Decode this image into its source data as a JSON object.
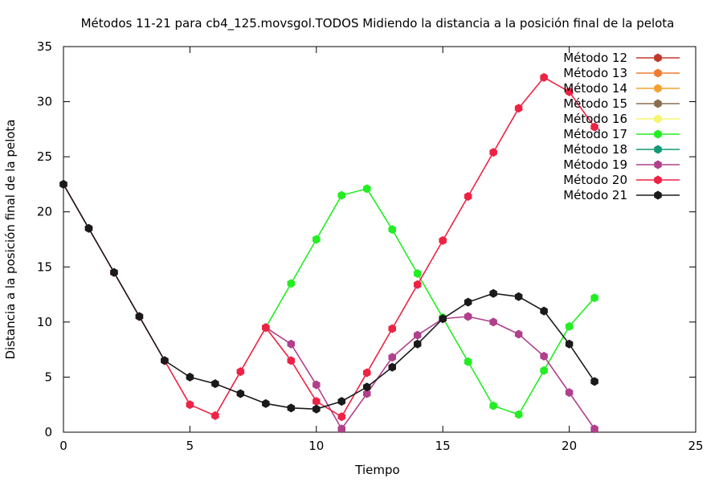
{
  "chart_data": {
    "type": "line",
    "title": "Métodos 11-21 para cb4_125.movsgol.TODOS Midiendo la distancia a la posición final de la pelota",
    "xlabel": "Tiempo",
    "ylabel": "Distancia a la posición final de la pelota",
    "xlim": [
      0,
      25
    ],
    "ylim": [
      0,
      35
    ],
    "xticks": [
      "0",
      "5",
      "10",
      "15",
      "20",
      "25"
    ],
    "yticks": [
      "0",
      "5",
      "10",
      "15",
      "20",
      "25",
      "30",
      "35"
    ],
    "grid": false,
    "legend_position": "top-right",
    "series": [
      {
        "name": "Método 12",
        "color": "#c0392b",
        "x": [],
        "y": []
      },
      {
        "name": "Método 13",
        "color": "#f07b30",
        "x": [],
        "y": []
      },
      {
        "name": "Método 14",
        "color": "#f5a030",
        "x": [],
        "y": []
      },
      {
        "name": "Método 15",
        "color": "#8a7050",
        "x": [],
        "y": []
      },
      {
        "name": "Método 16",
        "color": "#f5f570",
        "x": [],
        "y": []
      },
      {
        "name": "Método 17",
        "color": "#22ee22",
        "x": [
          8,
          9,
          10,
          11,
          12,
          13,
          14,
          15,
          16,
          17,
          18,
          19,
          20,
          21
        ],
        "y": [
          9.5,
          13.5,
          17.5,
          21.5,
          22.1,
          18.4,
          14.4,
          10.4,
          6.4,
          2.4,
          1.6,
          5.6,
          9.6,
          12.2
        ]
      },
      {
        "name": "Método 18",
        "color": "#119977",
        "x": [],
        "y": []
      },
      {
        "name": "Método 19",
        "color": "#b0408c",
        "x": [
          8,
          9,
          10,
          11,
          12,
          13,
          14,
          15,
          16,
          17,
          18,
          19,
          20,
          21
        ],
        "y": [
          9.5,
          8.0,
          4.3,
          0.3,
          3.5,
          6.8,
          8.8,
          10.3,
          10.5,
          10.0,
          8.9,
          6.9,
          3.6,
          0.3
        ]
      },
      {
        "name": "Método 20",
        "color": "#ee2244",
        "x": [
          0,
          1,
          2,
          3,
          4,
          5,
          6,
          7,
          8,
          9,
          10,
          11,
          12,
          13,
          14,
          15,
          16,
          17,
          18,
          19,
          20,
          21
        ],
        "y": [
          22.5,
          18.5,
          14.5,
          10.5,
          6.5,
          2.5,
          1.5,
          5.5,
          9.5,
          6.5,
          2.8,
          1.4,
          5.4,
          9.4,
          13.4,
          17.4,
          21.4,
          25.4,
          29.4,
          32.2,
          30.9,
          27.7
        ]
      },
      {
        "name": "Método 21",
        "color": "#1a1a1a",
        "x": [
          0,
          1,
          2,
          3,
          4,
          5,
          6,
          7,
          8,
          9,
          10,
          11,
          12,
          13,
          14,
          15,
          16,
          17,
          18,
          19,
          20,
          21
        ],
        "y": [
          22.5,
          18.5,
          14.5,
          10.5,
          6.5,
          5.0,
          4.4,
          3.5,
          2.6,
          2.2,
          2.1,
          2.8,
          4.1,
          5.9,
          8.0,
          10.3,
          11.8,
          12.6,
          12.3,
          11.0,
          8.0,
          4.6
        ]
      }
    ]
  }
}
